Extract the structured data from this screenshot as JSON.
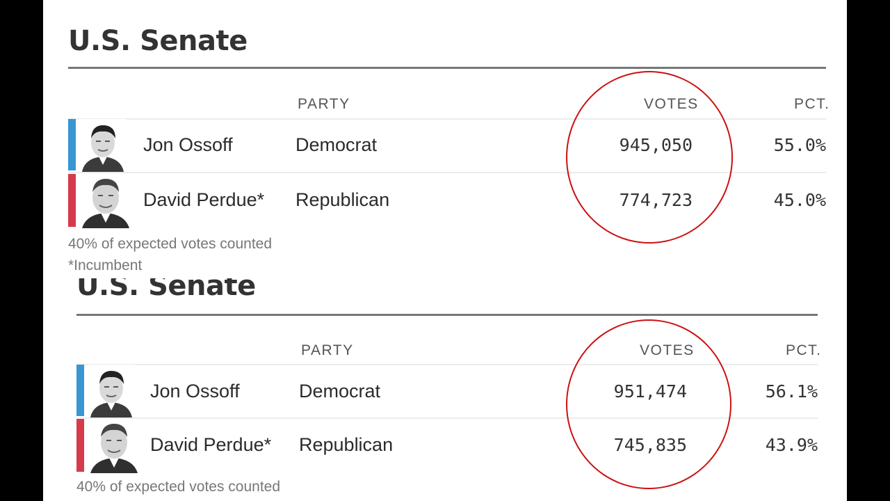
{
  "colors": {
    "democrat": "#3a96d2",
    "republican": "#d63b4b",
    "highlight": "#cc1111"
  },
  "panels": [
    {
      "title": "U.S. Senate",
      "headers": {
        "party": "PARTY",
        "votes": "VOTES",
        "pct": "PCT."
      },
      "rows": [
        {
          "name": "Jon Ossoff",
          "party": "Democrat",
          "votes": "945,050",
          "pct": "55.0%",
          "photo": "candidate-photo-ossoff"
        },
        {
          "name": "David Perdue*",
          "party": "Republican",
          "votes": "774,723",
          "pct": "45.0%",
          "photo": "candidate-photo-perdue"
        }
      ],
      "notes": {
        "counted": "40% of expected votes counted",
        "incumbent": "*Incumbent"
      }
    },
    {
      "title": "U.S. Senate",
      "headers": {
        "party": "PARTY",
        "votes": "VOTES",
        "pct": "PCT."
      },
      "rows": [
        {
          "name": "Jon Ossoff",
          "party": "Democrat",
          "votes": "951,474",
          "pct": "56.1%",
          "photo": "candidate-photo-ossoff"
        },
        {
          "name": "David Perdue*",
          "party": "Republican",
          "votes": "745,835",
          "pct": "43.9%",
          "photo": "candidate-photo-perdue"
        }
      ],
      "notes": {
        "counted": "40% of expected votes counted"
      }
    }
  ]
}
